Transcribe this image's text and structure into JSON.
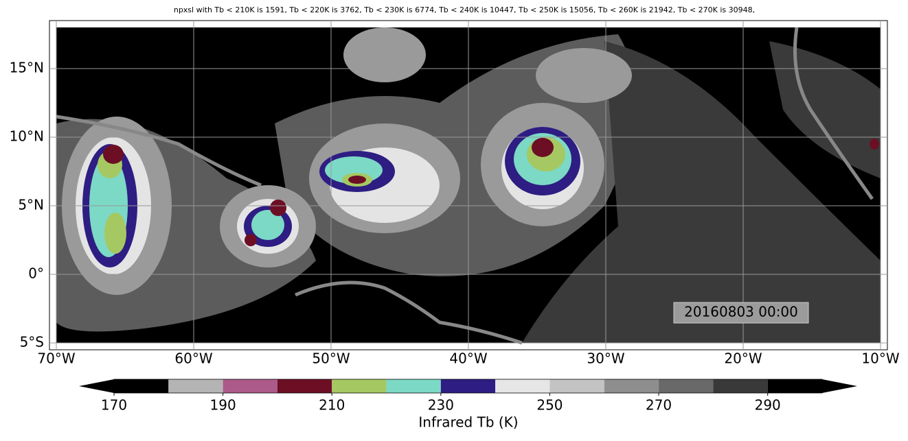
{
  "title": "npxsl with Tb < 210K is 1591,  Tb < 220K is 3762,  Tb < 230K is 6774,  Tb < 240K is 10447,  Tb < 250K is 15056,  Tb < 260K is 21942,  Tb < 270K is 30948,",
  "map": {
    "xlim": [
      -70,
      -10
    ],
    "ylim": [
      -5,
      18
    ],
    "grid": true,
    "xticks": [
      {
        "value": -70,
        "label": "70°W"
      },
      {
        "value": -60,
        "label": "60°W"
      },
      {
        "value": -50,
        "label": "50°W"
      },
      {
        "value": -40,
        "label": "40°W"
      },
      {
        "value": -30,
        "label": "30°W"
      },
      {
        "value": -20,
        "label": "20°W"
      },
      {
        "value": -10,
        "label": "10°W"
      }
    ],
    "yticks": [
      {
        "value": -5,
        "label": "5°S"
      },
      {
        "value": 0,
        "label": "0°"
      },
      {
        "value": 5,
        "label": "5°N"
      },
      {
        "value": 10,
        "label": "10°N"
      },
      {
        "value": 15,
        "label": "15°N"
      }
    ],
    "timestamp": "20160803 00:00"
  },
  "colorbar": {
    "label": "Infrared Tb (K)",
    "levels": [
      170,
      180,
      190,
      200,
      210,
      220,
      230,
      240,
      250,
      260,
      270,
      280,
      290,
      300
    ],
    "colors": [
      "#000000",
      "#b4b4b4",
      "#ac5a8a",
      "#6c0f25",
      "#a6c862",
      "#7bd9c6",
      "#2e1d82",
      "#e6e6e6",
      "#c3c3c3",
      "#8e8e8e",
      "#696969",
      "#393939",
      "#000000"
    ],
    "ticks": [
      170,
      190,
      210,
      230,
      250,
      270,
      290
    ],
    "extend": "both"
  }
}
